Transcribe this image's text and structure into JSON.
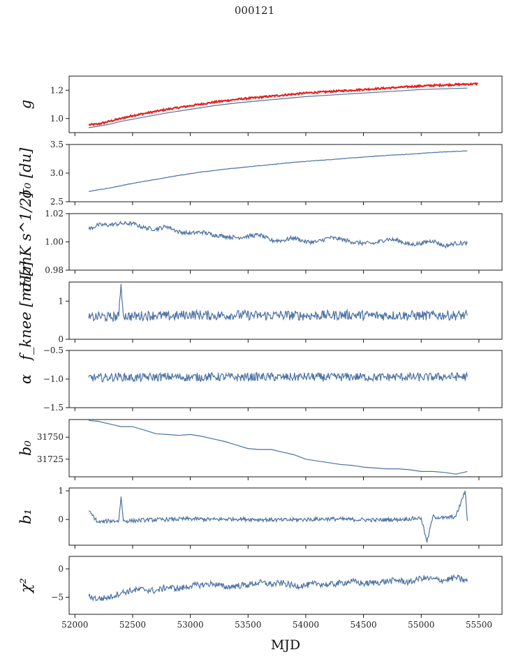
{
  "figure": {
    "title": "000121"
  },
  "chart_data": [
    {
      "type": "line",
      "ylabel": "g",
      "xlim": [
        51950,
        55700
      ],
      "ylim": [
        0.9,
        1.3
      ],
      "yticks": [
        1.0,
        1.2
      ],
      "ytick_labels": [
        "1.0",
        "1.2"
      ],
      "show_xtick_labels": false,
      "series": [
        {
          "color": "#4c72a4",
          "x": [
            52120,
            52200,
            52300,
            52400,
            52500,
            52600,
            52800,
            53000,
            53200,
            53400,
            53600,
            53800,
            54000,
            54200,
            54400,
            54600,
            54800,
            55000,
            55200,
            55400
          ],
          "y": [
            0.935,
            0.945,
            0.96,
            0.98,
            0.995,
            1.01,
            1.04,
            1.065,
            1.09,
            1.11,
            1.125,
            1.14,
            1.155,
            1.165,
            1.175,
            1.185,
            1.195,
            1.205,
            1.21,
            1.215
          ]
        },
        {
          "color": "#e8211c",
          "x": [
            52120,
            52200,
            52300,
            52400,
            52500,
            52600,
            52800,
            53000,
            53200,
            53400,
            53600,
            53800,
            54000,
            54200,
            54400,
            54600,
            54800,
            55000,
            55200,
            55400,
            55490
          ],
          "y": [
            0.955,
            0.96,
            0.98,
            1.0,
            1.02,
            1.035,
            1.065,
            1.09,
            1.115,
            1.135,
            1.15,
            1.165,
            1.18,
            1.19,
            1.2,
            1.21,
            1.22,
            1.23,
            1.237,
            1.243,
            1.245
          ]
        }
      ]
    },
    {
      "type": "line",
      "ylabel": "σ₀ [du]",
      "xlim": [
        51950,
        55700
      ],
      "ylim": [
        2.5,
        3.5
      ],
      "yticks": [
        2.5,
        3.0,
        3.5
      ],
      "ytick_labels": [
        "2.5",
        "3.0",
        "3.5"
      ],
      "show_xtick_labels": false,
      "series": [
        {
          "color": "#4c72a4",
          "x": [
            52120,
            52300,
            52500,
            52700,
            52900,
            53100,
            53300,
            53500,
            53700,
            53900,
            54100,
            54300,
            54500,
            54700,
            54900,
            55100,
            55300,
            55400
          ],
          "y": [
            2.68,
            2.74,
            2.82,
            2.89,
            2.96,
            3.02,
            3.07,
            3.11,
            3.15,
            3.19,
            3.22,
            3.25,
            3.28,
            3.31,
            3.33,
            3.36,
            3.38,
            3.39
          ]
        }
      ]
    },
    {
      "type": "line",
      "ylabel": "σ₀[mK s^1/2]",
      "xlim": [
        51950,
        55700
      ],
      "ylim": [
        0.98,
        1.02
      ],
      "yticks": [
        0.98,
        1.0,
        1.02
      ],
      "ytick_labels": [
        "0.98",
        "1.00",
        "1.02"
      ],
      "show_xtick_labels": false,
      "series": [
        {
          "color": "#4c72a4",
          "x": [
            52120,
            52200,
            52300,
            52400,
            52500,
            52600,
            52700,
            52800,
            52900,
            53000,
            53100,
            53200,
            53300,
            53400,
            53500,
            53600,
            53700,
            53800,
            53900,
            54000,
            54100,
            54200,
            54300,
            54400,
            54500,
            54600,
            54700,
            54800,
            54900,
            55000,
            55100,
            55200,
            55300,
            55400
          ],
          "y": [
            1.009,
            1.012,
            1.012,
            1.013,
            1.013,
            1.01,
            1.009,
            1.011,
            1.007,
            1.006,
            1.007,
            1.005,
            1.004,
            1.003,
            1.004,
            1.005,
            1.001,
            1.001,
            1.003,
            1.0,
            1.0,
            1.003,
            1.002,
            1.0,
            0.999,
            0.999,
            1.002,
            1.001,
            0.998,
            0.999,
            1.001,
            0.997,
            0.999,
            0.999
          ]
        }
      ]
    },
    {
      "type": "line",
      "ylabel": "f_knee [mHz]",
      "xlim": [
        51950,
        55700
      ],
      "ylim": [
        0,
        1.5
      ],
      "yticks": [
        0,
        1
      ],
      "ytick_labels": [
        "0",
        "1"
      ],
      "show_xtick_labels": false,
      "series": [
        {
          "color": "#4c72a4",
          "x": [
            52120,
            52200,
            52300,
            52380,
            52400,
            52420,
            52500,
            52600,
            52700,
            52800,
            52900,
            53000,
            53200,
            53400,
            53600,
            53800,
            54000,
            54200,
            54400,
            54600,
            54800,
            55000,
            55200,
            55400
          ],
          "y": [
            0.55,
            0.6,
            0.58,
            0.6,
            1.45,
            0.62,
            0.6,
            0.62,
            0.63,
            0.6,
            0.62,
            0.65,
            0.62,
            0.64,
            0.62,
            0.63,
            0.62,
            0.63,
            0.64,
            0.62,
            0.63,
            0.62,
            0.63,
            0.62
          ]
        }
      ]
    },
    {
      "type": "line",
      "ylabel": "α",
      "xlim": [
        51950,
        55700
      ],
      "ylim": [
        -1.5,
        -0.5
      ],
      "yticks": [
        -1.5,
        -1.0,
        -0.5
      ],
      "ytick_labels": [
        "−1.5",
        "−1.0",
        "−0.5"
      ],
      "show_xtick_labels": false,
      "series": [
        {
          "color": "#4c72a4",
          "x": [
            52120,
            52200,
            52300,
            52400,
            52500,
            52600,
            52800,
            53000,
            53200,
            53400,
            53600,
            53800,
            54000,
            54200,
            54400,
            54600,
            54800,
            55000,
            55200,
            55400
          ],
          "y": [
            -0.97,
            -0.98,
            -0.97,
            -0.96,
            -0.98,
            -0.97,
            -0.96,
            -0.97,
            -0.96,
            -0.97,
            -0.96,
            -0.97,
            -0.96,
            -0.97,
            -0.96,
            -0.97,
            -0.96,
            -0.97,
            -0.96,
            -0.96
          ]
        }
      ]
    },
    {
      "type": "line",
      "ylabel": "b₀",
      "xlim": [
        51950,
        55700
      ],
      "ylim": [
        31705,
        31770
      ],
      "yticks": [
        31725,
        31750
      ],
      "ytick_labels": [
        "31725",
        "31750"
      ],
      "show_xtick_labels": false,
      "series": [
        {
          "color": "#4c72a4",
          "x": [
            52120,
            52200,
            52300,
            52400,
            52500,
            52600,
            52700,
            52800,
            52900,
            53000,
            53100,
            53200,
            53300,
            53400,
            53500,
            53600,
            53700,
            53800,
            53900,
            54000,
            54100,
            54200,
            54300,
            54400,
            54500,
            54600,
            54700,
            54800,
            54900,
            55000,
            55100,
            55200,
            55300,
            55400
          ],
          "y": [
            31769,
            31768,
            31765,
            31762,
            31762,
            31758,
            31754,
            31753,
            31752,
            31753,
            31751,
            31748,
            31745,
            31741,
            31737,
            31736,
            31736,
            31733,
            31730,
            31725,
            31723,
            31721,
            31719,
            31718,
            31716,
            31715,
            31714,
            31714,
            31713,
            31711,
            31711,
            31710,
            31708,
            31711
          ]
        }
      ]
    },
    {
      "type": "line",
      "ylabel": "b₁",
      "xlim": [
        51950,
        55700
      ],
      "ylim": [
        -0.9,
        1.1
      ],
      "yticks": [
        0,
        1
      ],
      "ytick_labels": [
        "0",
        "1"
      ],
      "show_xtick_labels": false,
      "series": [
        {
          "color": "#4c72a4",
          "x": [
            52120,
            52200,
            52300,
            52380,
            52400,
            52420,
            52500,
            52600,
            52800,
            53000,
            53200,
            53400,
            53600,
            53800,
            54000,
            54200,
            54400,
            54600,
            54800,
            55000,
            55050,
            55100,
            55200,
            55300,
            55380,
            55400
          ],
          "y": [
            0.3,
            -0.1,
            -0.05,
            -0.05,
            0.8,
            -0.05,
            -0.05,
            -0.02,
            0.0,
            0.02,
            0.0,
            0.02,
            0.0,
            -0.02,
            0.0,
            0.02,
            0.0,
            -0.02,
            0.0,
            0.05,
            -0.8,
            0.1,
            0.05,
            0.1,
            1.0,
            -0.05
          ]
        }
      ]
    },
    {
      "type": "line",
      "ylabel": "χ²",
      "xlabel": "MJD",
      "xlim": [
        51950,
        55700
      ],
      "ylim": [
        -8,
        2.2
      ],
      "yticks": [
        -5,
        0
      ],
      "ytick_labels": [
        "−5",
        "0"
      ],
      "xticks": [
        52000,
        52500,
        53000,
        53500,
        54000,
        54500,
        55000,
        55500
      ],
      "xtick_labels": [
        "52000",
        "52500",
        "53000",
        "53500",
        "54000",
        "54500",
        "55000",
        "55500"
      ],
      "show_xtick_labels": true,
      "series": [
        {
          "color": "#4c72a4",
          "x": [
            52120,
            52200,
            52300,
            52400,
            52500,
            52600,
            52700,
            52800,
            52900,
            53000,
            53100,
            53200,
            53300,
            53400,
            53500,
            53600,
            53700,
            53800,
            53900,
            54000,
            54100,
            54200,
            54300,
            54400,
            54500,
            54600,
            54700,
            54800,
            54900,
            55000,
            55100,
            55200,
            55300,
            55400
          ],
          "y": [
            -4.8,
            -5.3,
            -5.0,
            -4.2,
            -3.8,
            -3.6,
            -3.9,
            -3.2,
            -3.5,
            -3.0,
            -2.8,
            -2.6,
            -3.2,
            -3.0,
            -2.8,
            -2.4,
            -2.7,
            -2.5,
            -3.0,
            -2.9,
            -2.6,
            -2.8,
            -2.5,
            -2.2,
            -2.6,
            -2.4,
            -2.2,
            -2.0,
            -2.4,
            -1.6,
            -1.8,
            -2.0,
            -1.5,
            -2.2
          ]
        }
      ]
    }
  ]
}
